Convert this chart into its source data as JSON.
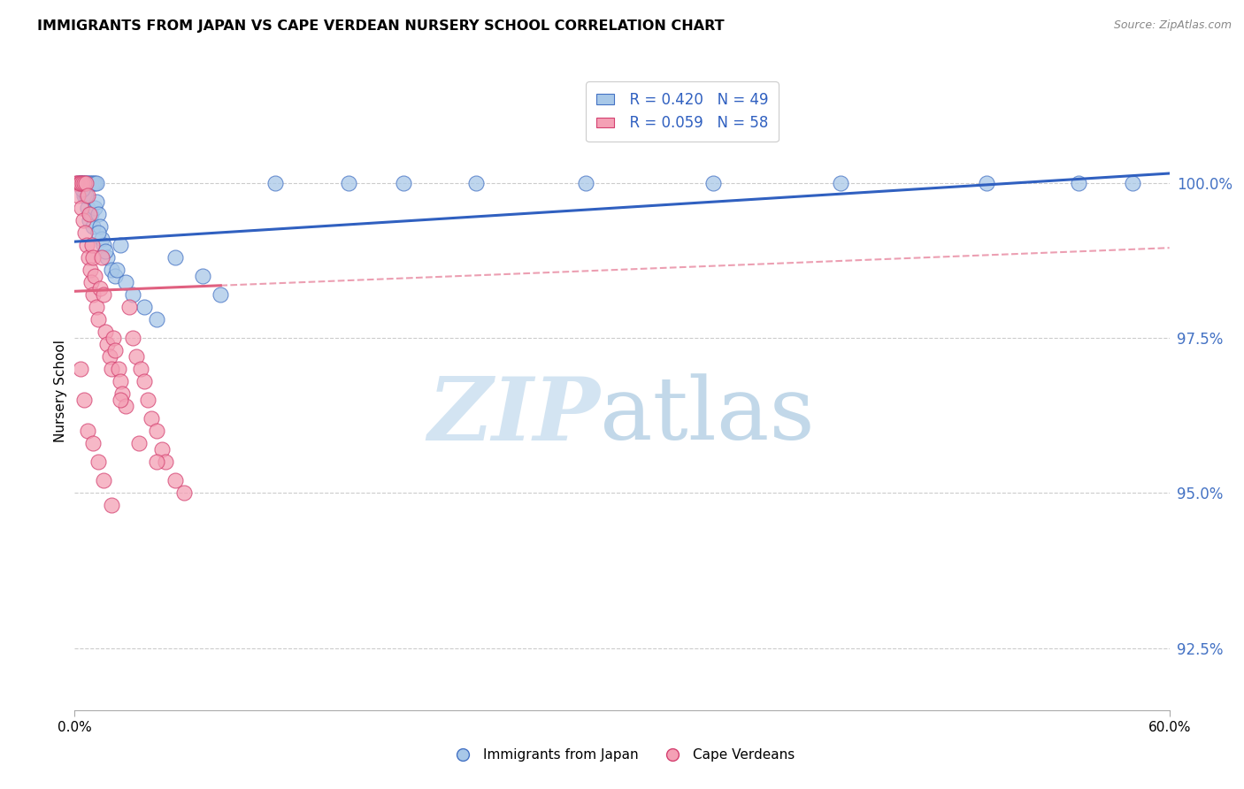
{
  "title": "IMMIGRANTS FROM JAPAN VS CAPE VERDEAN NURSERY SCHOOL CORRELATION CHART",
  "source": "Source: ZipAtlas.com",
  "ylabel": "Nursery School",
  "ytick_values": [
    92.5,
    95.0,
    97.5,
    100.0
  ],
  "xlim": [
    0.0,
    60.0
  ],
  "ylim": [
    91.5,
    101.8
  ],
  "legend_blue_r": "R = 0.420",
  "legend_blue_n": "N = 49",
  "legend_pink_r": "R = 0.059",
  "legend_pink_n": "N = 58",
  "blue_color": "#a8c8e8",
  "blue_edge_color": "#4472c4",
  "pink_color": "#f4a0b5",
  "pink_edge_color": "#d44070",
  "blue_line_color": "#3060c0",
  "pink_line_color": "#e06080",
  "tick_label_color": "#4472c4",
  "bottom_legend_1": "Immigrants from Japan",
  "bottom_legend_2": "Cape Verdeans",
  "blue_scatter_x": [
    0.2,
    0.3,
    0.4,
    0.5,
    0.5,
    0.6,
    0.7,
    0.7,
    0.8,
    0.8,
    0.9,
    0.9,
    1.0,
    1.0,
    1.1,
    1.1,
    1.2,
    1.2,
    1.3,
    1.4,
    1.5,
    1.6,
    1.8,
    2.0,
    2.2,
    2.5,
    2.8,
    3.2,
    3.8,
    4.5,
    5.5,
    7.0,
    8.0,
    11.0,
    15.0,
    18.0,
    22.0,
    28.0,
    35.0,
    42.0,
    50.0,
    55.0,
    58.0,
    1.3,
    1.7,
    2.3,
    0.6,
    0.4,
    0.3
  ],
  "blue_scatter_y": [
    100.0,
    100.0,
    100.0,
    100.0,
    99.8,
    100.0,
    100.0,
    99.6,
    100.0,
    99.4,
    100.0,
    99.5,
    100.0,
    99.3,
    100.0,
    99.6,
    100.0,
    99.7,
    99.5,
    99.3,
    99.1,
    99.0,
    98.8,
    98.6,
    98.5,
    99.0,
    98.4,
    98.2,
    98.0,
    97.8,
    98.8,
    98.5,
    98.2,
    100.0,
    100.0,
    100.0,
    100.0,
    100.0,
    100.0,
    100.0,
    100.0,
    100.0,
    100.0,
    99.2,
    98.9,
    98.6,
    99.8,
    99.9,
    100.0
  ],
  "pink_scatter_x": [
    0.1,
    0.15,
    0.2,
    0.25,
    0.3,
    0.35,
    0.4,
    0.45,
    0.5,
    0.55,
    0.6,
    0.65,
    0.7,
    0.75,
    0.8,
    0.85,
    0.9,
    0.95,
    1.0,
    1.0,
    1.1,
    1.2,
    1.3,
    1.4,
    1.5,
    1.6,
    1.7,
    1.8,
    1.9,
    2.0,
    2.1,
    2.2,
    2.4,
    2.5,
    2.6,
    2.8,
    3.0,
    3.2,
    3.4,
    3.6,
    3.8,
    4.0,
    4.2,
    4.5,
    4.8,
    5.0,
    5.5,
    6.0,
    0.3,
    0.5,
    0.7,
    1.0,
    1.3,
    1.6,
    2.0,
    2.5,
    3.5,
    4.5
  ],
  "pink_scatter_y": [
    100.0,
    100.0,
    99.8,
    100.0,
    100.0,
    99.6,
    100.0,
    99.4,
    100.0,
    99.2,
    100.0,
    99.0,
    99.8,
    98.8,
    99.5,
    98.6,
    98.4,
    99.0,
    98.8,
    98.2,
    98.5,
    98.0,
    97.8,
    98.3,
    98.8,
    98.2,
    97.6,
    97.4,
    97.2,
    97.0,
    97.5,
    97.3,
    97.0,
    96.8,
    96.6,
    96.4,
    98.0,
    97.5,
    97.2,
    97.0,
    96.8,
    96.5,
    96.2,
    96.0,
    95.7,
    95.5,
    95.2,
    95.0,
    97.0,
    96.5,
    96.0,
    95.8,
    95.5,
    95.2,
    94.8,
    96.5,
    95.8,
    95.5
  ],
  "blue_line_x0": 0.0,
  "blue_line_x1": 60.0,
  "blue_line_y0": 99.05,
  "blue_line_y1": 100.15,
  "pink_line_x0": 0.0,
  "pink_line_x1": 60.0,
  "pink_line_y0": 98.25,
  "pink_line_y1": 98.95,
  "pink_solid_end_x": 8.0
}
